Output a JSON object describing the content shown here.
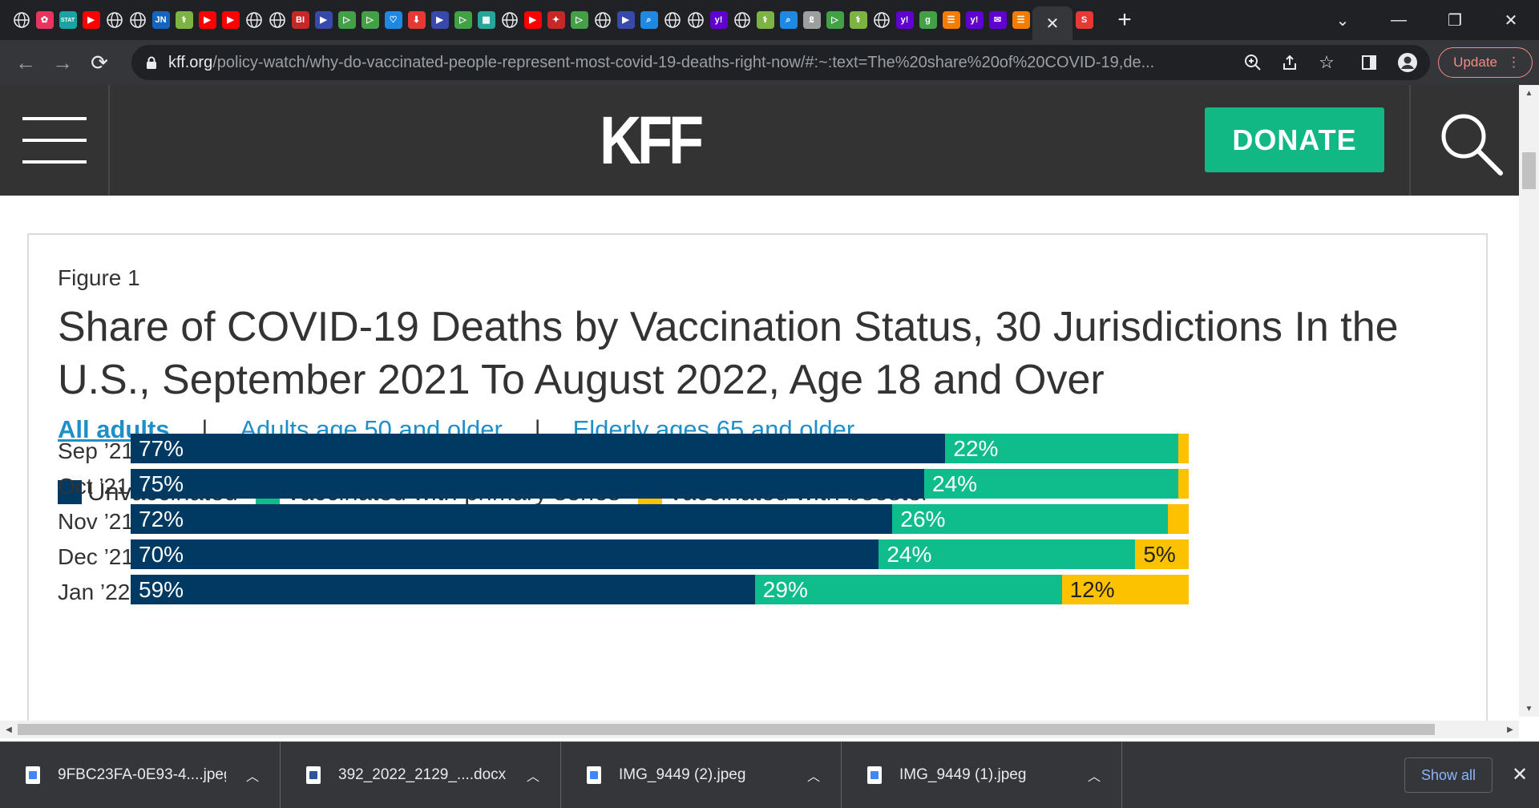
{
  "browser": {
    "tabs": [
      {
        "icon": "globe-icon",
        "color": "#1a73e8",
        "text": ""
      },
      {
        "icon": "flower-icon",
        "color": "#e8345e",
        "text": "✿"
      },
      {
        "icon": "stat-icon",
        "color": "#1ba3a3",
        "text": "STAT"
      },
      {
        "icon": "youtube-icon",
        "color": "#ff0000",
        "text": "▶"
      },
      {
        "icon": "globe-icon",
        "color": "#5f6368",
        "text": ""
      },
      {
        "icon": "globe-icon",
        "color": "#5f6368",
        "text": ""
      },
      {
        "icon": "jn-icon",
        "color": "#1565c0",
        "text": "JN"
      },
      {
        "icon": "medical-icon",
        "color": "#7cb342",
        "text": "⚕"
      },
      {
        "icon": "youtube-icon",
        "color": "#ff0000",
        "text": "▶"
      },
      {
        "icon": "youtube-icon",
        "color": "#ff0000",
        "text": "▶"
      },
      {
        "icon": "globe-icon",
        "color": "#5f6368",
        "text": ""
      },
      {
        "icon": "globe-icon",
        "color": "#5f6368",
        "text": ""
      },
      {
        "icon": "bi-icon",
        "color": "#c62828",
        "text": "BI"
      },
      {
        "icon": "arrow-icon",
        "color": "#3949ab",
        "text": "▶"
      },
      {
        "icon": "play-icon",
        "color": "#43a047",
        "text": "▷"
      },
      {
        "icon": "play-icon",
        "color": "#43a047",
        "text": "▷"
      },
      {
        "icon": "heart-icon",
        "color": "#1e88e5",
        "text": "♡"
      },
      {
        "icon": "pin-icon",
        "color": "#e53935",
        "text": "⬇"
      },
      {
        "icon": "arrow-icon",
        "color": "#3949ab",
        "text": "▶"
      },
      {
        "icon": "play-icon",
        "color": "#43a047",
        "text": "▷"
      },
      {
        "icon": "grid-icon",
        "color": "#26a69a",
        "text": "▦"
      },
      {
        "icon": "globe-icon",
        "color": "#5f6368",
        "text": ""
      },
      {
        "icon": "youtube-icon",
        "color": "#ff0000",
        "text": "▶"
      },
      {
        "icon": "star-icon",
        "color": "#c62828",
        "text": "✦"
      },
      {
        "icon": "play-icon",
        "color": "#43a047",
        "text": "▷"
      },
      {
        "icon": "globe-icon",
        "color": "#5f6368",
        "text": ""
      },
      {
        "icon": "arrow-icon",
        "color": "#3949ab",
        "text": "▶"
      },
      {
        "icon": "search-icon",
        "color": "#1e88e5",
        "text": "⌕"
      },
      {
        "icon": "globe-icon",
        "color": "#5f6368",
        "text": ""
      },
      {
        "icon": "globe-icon",
        "color": "#5f6368",
        "text": ""
      },
      {
        "icon": "yahoo-icon",
        "color": "#6001d2",
        "text": "y!"
      },
      {
        "icon": "globe-icon",
        "color": "#5f6368",
        "text": ""
      },
      {
        "icon": "medical-icon",
        "color": "#7cb342",
        "text": "⚕"
      },
      {
        "icon": "search-icon",
        "color": "#1e88e5",
        "text": "⌕"
      },
      {
        "icon": "script-icon",
        "color": "#9e9e9e",
        "text": "𝕷"
      },
      {
        "icon": "play-icon",
        "color": "#43a047",
        "text": "▷"
      },
      {
        "icon": "medical-icon",
        "color": "#7cb342",
        "text": "⚕"
      },
      {
        "icon": "globe-icon",
        "color": "#5f6368",
        "text": ""
      },
      {
        "icon": "yahoo-icon",
        "color": "#6001d2",
        "text": "y!"
      },
      {
        "icon": "g-icon",
        "color": "#43a047",
        "text": "g"
      },
      {
        "icon": "bookmark-icon",
        "color": "#f57c00",
        "text": "☰"
      },
      {
        "icon": "yahoo-icon",
        "color": "#6001d2",
        "text": "y!"
      },
      {
        "icon": "mail-icon",
        "color": "#6001d2",
        "text": "✉"
      },
      {
        "icon": "bookmark-icon",
        "color": "#f57c00",
        "text": "☰"
      }
    ],
    "active_tab_close": "✕",
    "extra_tab": {
      "icon": "s-icon",
      "color": "#e53935",
      "text": "S"
    },
    "new_tab": "+",
    "window": {
      "tab_search": "⌄",
      "minimize": "—",
      "restore": "❐",
      "close": "✕"
    },
    "url_host": "kff.org",
    "url_path": "/policy-watch/why-do-vaccinated-people-represent-most-covid-19-deaths-right-now/#:~:text=The%20share%20of%20COVID-19,de...",
    "update_label": "Update"
  },
  "site": {
    "logo": "KFF",
    "donate_label": "DONATE"
  },
  "figure": {
    "label": "Figure 1",
    "title": "Share of COVID-19 Deaths by Vaccination Status, 30 Jurisdictions In the U.S., September 2021 To August 2022, Age 18 and Over",
    "filters": [
      "All adults",
      "Adults age 50 and older",
      "Elderly ages 65 and older"
    ],
    "filter_separator": "|",
    "active_filter": "All adults"
  },
  "chart_data": {
    "type": "bar",
    "orientation": "horizontal-stacked-100",
    "categories": [
      "Sep ’21",
      "Oct ’21",
      "Nov ’21",
      "Dec ’21",
      "Jan ’22"
    ],
    "series": [
      {
        "name": "Unvaccinated",
        "color": "#003a63",
        "values": [
          77,
          75,
          72,
          70,
          59
        ]
      },
      {
        "name": "Vaccinated with primary series",
        "color": "#0fbd8c",
        "values": [
          22,
          24,
          26,
          24,
          29
        ]
      },
      {
        "name": "Vaccinated with booster",
        "color": "#fcc200",
        "values": [
          1,
          1,
          2,
          5,
          12
        ]
      }
    ],
    "data_labels": [
      [
        "77%",
        "22%",
        ""
      ],
      [
        "75%",
        "24%",
        ""
      ],
      [
        "72%",
        "26%",
        ""
      ],
      [
        "70%",
        "24%",
        "5%"
      ],
      [
        "59%",
        "29%",
        "12%"
      ]
    ],
    "xlim": [
      0,
      100
    ],
    "legend_position": "top-left",
    "grid": false
  },
  "downloads": {
    "items": [
      {
        "name": "9FBC23FA-0E93-4....jpeg",
        "type": "image"
      },
      {
        "name": "392_2022_2129_....docx",
        "type": "word"
      },
      {
        "name": "IMG_9449 (2).jpeg",
        "type": "image"
      },
      {
        "name": "IMG_9449 (1).jpeg",
        "type": "image"
      }
    ],
    "show_all_label": "Show all",
    "close": "✕"
  }
}
